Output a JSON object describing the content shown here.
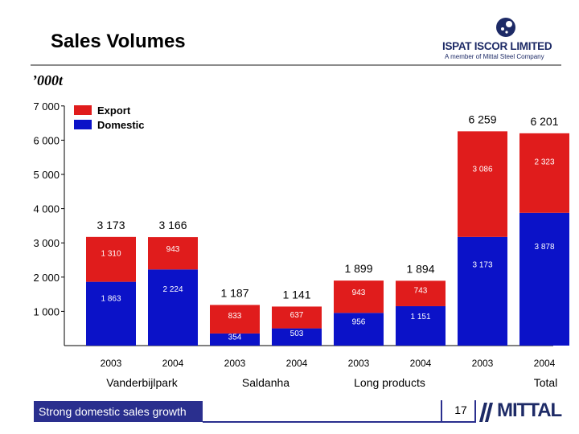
{
  "header": {
    "title": "Sales Volumes",
    "unit": "’000t",
    "logo_name": "ISPAT ISCOR LIMITED",
    "logo_sub": "A member of Mittal Steel Company"
  },
  "footer": {
    "caption": "Strong domestic sales growth",
    "page_number": "17",
    "brand": "MITTAL"
  },
  "colors": {
    "export": "#e01c1c",
    "domestic": "#0b12c8"
  },
  "chart_data": {
    "type": "bar",
    "stacked": true,
    "ylim": [
      0,
      7000
    ],
    "yticks": [
      "7 000",
      "6 000",
      "5 000",
      "4 000",
      "3 000",
      "2 000",
      "1 000"
    ],
    "ytick_values": [
      7000,
      6000,
      5000,
      4000,
      3000,
      2000,
      1000
    ],
    "legend": [
      "Export",
      "Domestic"
    ],
    "legend_position": "top-left",
    "groups": [
      "Vanderbijlpark",
      "Saldanha",
      "Long products",
      "Total"
    ],
    "bars": [
      {
        "group": "Vanderbijlpark",
        "year": "2003",
        "domestic": 1863,
        "export": 1310,
        "domestic_label": "1 863",
        "export_label": "1 310",
        "total_label": "3 173"
      },
      {
        "group": "Vanderbijlpark",
        "year": "2004",
        "domestic": 2224,
        "export": 943,
        "domestic_label": "2 224",
        "export_label": "943",
        "total_label": "3 166"
      },
      {
        "group": "Saldanha",
        "year": "2003",
        "domestic": 354,
        "export": 833,
        "domestic_label": "354",
        "export_label": "833",
        "total_label": "1 187"
      },
      {
        "group": "Saldanha",
        "year": "2004",
        "domestic": 503,
        "export": 637,
        "domestic_label": "503",
        "export_label": "637",
        "total_label": "1 141"
      },
      {
        "group": "Long products",
        "year": "2003",
        "domestic": 956,
        "export": 943,
        "domestic_label": "956",
        "export_label": "943",
        "total_label": "1 899"
      },
      {
        "group": "Long products",
        "year": "2004",
        "domestic": 1151,
        "export": 743,
        "domestic_label": "1 151",
        "export_label": "743",
        "total_label": "1 894"
      },
      {
        "group": "Total",
        "year": "2003",
        "domestic": 3173,
        "export": 3086,
        "domestic_label": "3 173",
        "export_label": "3 086",
        "total_label": "6 259"
      },
      {
        "group": "Total",
        "year": "2004",
        "domestic": 3878,
        "export": 2323,
        "domestic_label": "3 878",
        "export_label": "2 323",
        "total_label": "6 201"
      }
    ]
  }
}
